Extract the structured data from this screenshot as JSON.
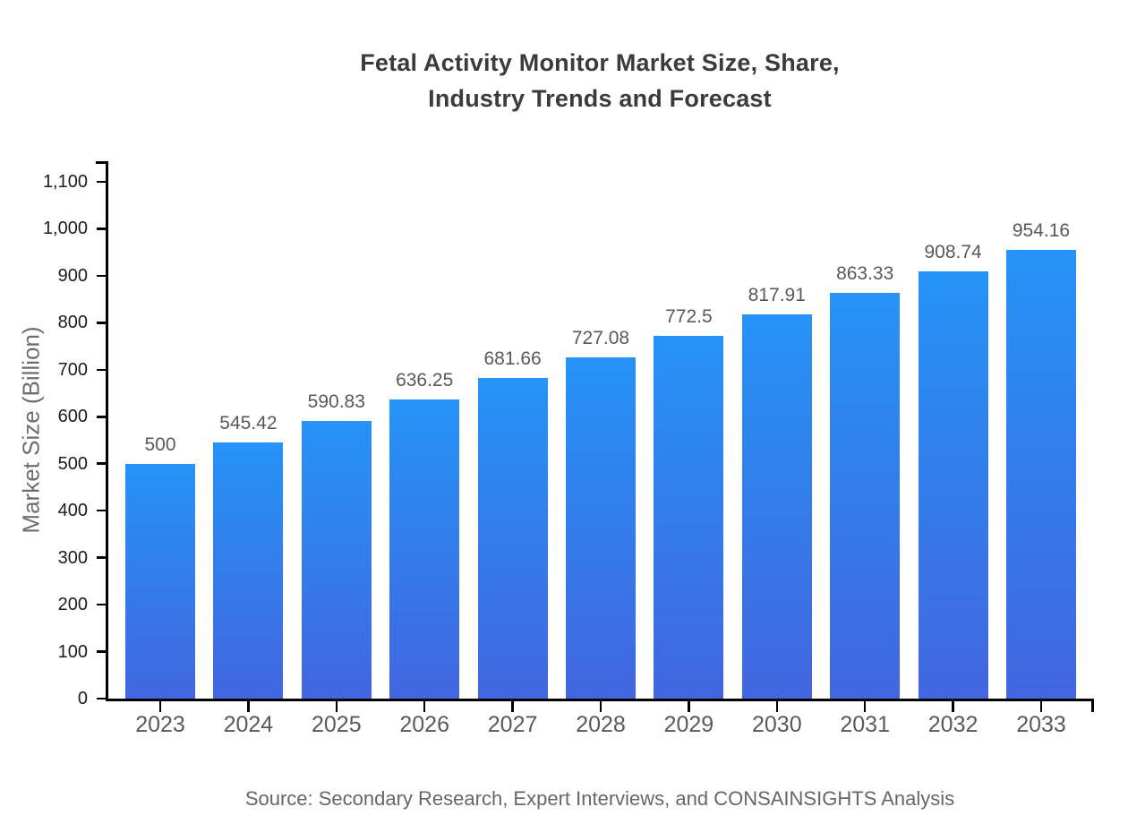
{
  "chart_data": {
    "type": "bar",
    "title": "Fetal Activity Monitor Market Size, Share,\nIndustry Trends and Forecast",
    "xlabel": "",
    "ylabel": "Market Size (Billion)",
    "categories": [
      "2023",
      "2024",
      "2025",
      "2026",
      "2027",
      "2028",
      "2029",
      "2030",
      "2031",
      "2032",
      "2033"
    ],
    "values": [
      500,
      545.42,
      590.83,
      636.25,
      681.66,
      727.08,
      772.5,
      817.91,
      863.33,
      908.74,
      954.16
    ],
    "data_labels": [
      "500",
      "545.42",
      "590.83",
      "636.25",
      "681.66",
      "727.08",
      "772.5",
      "817.91",
      "863.33",
      "908.74",
      "954.16"
    ],
    "ylim": [
      0,
      1100
    ],
    "ytick_step": 100,
    "ytick_labels": [
      "0",
      "100",
      "200",
      "300",
      "400",
      "500",
      "600",
      "700",
      "800",
      "900",
      "1,000",
      "1,100"
    ],
    "grid": false,
    "legend": "none",
    "source": "Source: Secondary Research, Expert Interviews, and CONSAINSIGHTS Analysis",
    "colors": {
      "bar_gradient_top": "#2593f7",
      "bar_gradient_bottom": "#4266df",
      "title": "#3b3b3b",
      "axis": "#000000",
      "data_label": "#58595b",
      "tick_label": "#1c1c1c",
      "axis_title": "#6d6d6d",
      "source": "#666666"
    }
  }
}
